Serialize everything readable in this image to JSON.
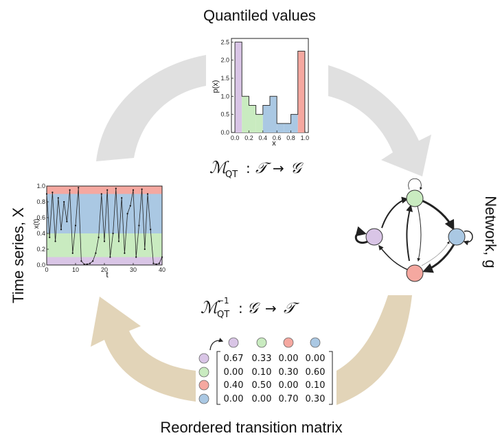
{
  "labels": {
    "top": "Quantiled values",
    "left": "Time series, X",
    "right": "Network, g",
    "bottom": "Reordered transition matrix"
  },
  "colors": {
    "q1": "#d9c5e6",
    "q2": "#c9ebc0",
    "q3": "#aac8e3",
    "q4": "#f5a8a0",
    "arrow_gray": "#e0e0e0",
    "arrow_tan": "#e2d4b8"
  },
  "histogram": {
    "xlabel": "x",
    "ylabel": "p(x)",
    "xticks": [
      "0.0",
      "0.2",
      "0.4",
      "0.6",
      "0.8",
      "1.0"
    ],
    "yticks": [
      "0.0",
      "0.5",
      "1.0",
      "1.5",
      "2.0",
      "2.5"
    ]
  },
  "timeseries": {
    "xlabel": "t",
    "ylabel": "x(t)",
    "xticks": [
      "0",
      "10",
      "20",
      "30",
      "40"
    ],
    "yticks": [
      "0.0",
      "0.2",
      "0.4",
      "0.6",
      "0.8",
      "1.0"
    ]
  },
  "formulas": {
    "forward": "M_QT : T → G",
    "inverse": "M_QT^-1 : G → T"
  },
  "matrix": {
    "rows": [
      [
        "0.67",
        "0.33",
        "0.00",
        "0.00"
      ],
      [
        "0.00",
        "0.10",
        "0.30",
        "0.60"
      ],
      [
        "0.40",
        "0.50",
        "0.00",
        "0.10"
      ],
      [
        "0.00",
        "0.00",
        "0.70",
        "0.30"
      ]
    ]
  },
  "chart_data": [
    {
      "type": "bar",
      "xlabel": "x",
      "ylabel": "p(x)",
      "bins": [
        [
          0.0,
          0.1
        ],
        [
          0.1,
          0.2
        ],
        [
          0.2,
          0.3
        ],
        [
          0.3,
          0.4
        ],
        [
          0.4,
          0.5
        ],
        [
          0.5,
          0.6
        ],
        [
          0.6,
          0.7
        ],
        [
          0.7,
          0.8
        ],
        [
          0.8,
          0.9
        ],
        [
          0.9,
          1.0
        ]
      ],
      "values": [
        2.5,
        1.0,
        0.75,
        0.5,
        0.75,
        1.0,
        0.25,
        0.25,
        0.5,
        2.25
      ],
      "xlim": [
        -0.05,
        1.05
      ],
      "ylim": [
        0,
        2.6
      ]
    },
    {
      "type": "line",
      "xlabel": "t",
      "ylabel": "x(t)",
      "xlim": [
        0,
        40
      ],
      "ylim": [
        0,
        1
      ],
      "quantile_bands": [
        0.1,
        0.4,
        0.9
      ],
      "x": [
        0,
        1,
        2,
        3,
        4,
        5,
        6,
        7,
        8,
        9,
        10,
        11,
        12,
        13,
        14,
        15,
        16,
        17,
        18,
        19,
        20,
        21,
        22,
        23,
        24,
        25,
        26,
        27,
        28,
        29,
        30,
        31,
        32,
        33,
        34,
        35,
        36,
        37,
        38,
        39,
        40
      ],
      "y": [
        0.9,
        0.35,
        0.92,
        0.3,
        0.85,
        0.45,
        0.8,
        0.55,
        0.95,
        0.15,
        0.5,
        0.98,
        0.05,
        0.01,
        0.01,
        0.02,
        0.05,
        0.15,
        0.35,
        0.9,
        0.3,
        0.95,
        0.1,
        0.4,
        0.97,
        0.3,
        0.85,
        0.15,
        0.65,
        0.75,
        0.95,
        0.1,
        0.5,
        0.96,
        0.2,
        0.9,
        0.45,
        0.02,
        0.01,
        0.02,
        0.1
      ]
    }
  ]
}
